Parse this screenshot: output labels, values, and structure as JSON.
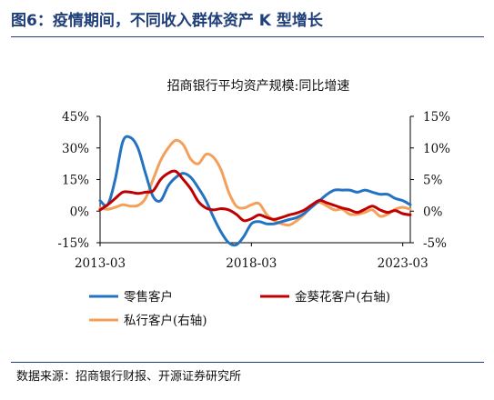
{
  "figure_title": "图6：疫情期间，不同收入群体资产 K 型增长",
  "source": "数据来源：招商银行财报、开源证券研究所",
  "chart_data": {
    "type": "line",
    "title": "招商银行平均资产规模:同比增速",
    "x_ticks": [
      "2013-03",
      "2018-03",
      "2023-03"
    ],
    "x_range": [
      "2013-03",
      "2023-06"
    ],
    "y_left": {
      "ticks": [
        "45%",
        "30%",
        "15%",
        "0%",
        "-15%"
      ],
      "range": [
        -15,
        45
      ]
    },
    "y_right": {
      "ticks": [
        "15%",
        "10%",
        "5%",
        "0%",
        "-5%"
      ],
      "range": [
        -5,
        15
      ]
    },
    "grid": false,
    "legend_position": "bottom",
    "series": [
      {
        "name": "零售客户",
        "axis": "left",
        "color": "#2473c2",
        "points": [
          [
            "2013-03",
            5
          ],
          [
            "2013-06",
            3
          ],
          [
            "2013-09",
            15
          ],
          [
            "2013-12",
            33
          ],
          [
            "2014-03",
            35
          ],
          [
            "2014-06",
            30
          ],
          [
            "2014-09",
            18
          ],
          [
            "2014-12",
            7
          ],
          [
            "2015-03",
            5
          ],
          [
            "2015-06",
            12
          ],
          [
            "2015-09",
            16
          ],
          [
            "2015-12",
            18
          ],
          [
            "2016-03",
            16
          ],
          [
            "2016-06",
            11
          ],
          [
            "2016-09",
            5
          ],
          [
            "2016-12",
            -3
          ],
          [
            "2017-03",
            -10
          ],
          [
            "2017-06",
            -15
          ],
          [
            "2017-09",
            -16
          ],
          [
            "2017-12",
            -12
          ],
          [
            "2018-03",
            -6
          ],
          [
            "2018-06",
            -5
          ],
          [
            "2018-09",
            -6
          ],
          [
            "2018-12",
            -6
          ],
          [
            "2019-03",
            -5
          ],
          [
            "2019-06",
            -4
          ],
          [
            "2019-09",
            -3
          ],
          [
            "2019-12",
            -1
          ],
          [
            "2020-03",
            2
          ],
          [
            "2020-06",
            5
          ],
          [
            "2020-09",
            8
          ],
          [
            "2020-12",
            10
          ],
          [
            "2021-03",
            10
          ],
          [
            "2021-06",
            10
          ],
          [
            "2021-09",
            9
          ],
          [
            "2021-12",
            10
          ],
          [
            "2022-03",
            9
          ],
          [
            "2022-06",
            8
          ],
          [
            "2022-09",
            8
          ],
          [
            "2022-12",
            6
          ],
          [
            "2023-03",
            5
          ],
          [
            "2023-06",
            3
          ]
        ]
      },
      {
        "name": "金葵花客户(右轴)",
        "axis": "right",
        "color": "#c00000",
        "points": [
          [
            "2013-03",
            0.2
          ],
          [
            "2013-06",
            1.0
          ],
          [
            "2013-09",
            2.0
          ],
          [
            "2013-12",
            3.0
          ],
          [
            "2014-03",
            3.0
          ],
          [
            "2014-06",
            2.8
          ],
          [
            "2014-09",
            3.0
          ],
          [
            "2014-12",
            3.2
          ],
          [
            "2015-03",
            5.0
          ],
          [
            "2015-06",
            6.0
          ],
          [
            "2015-09",
            6.3
          ],
          [
            "2015-12",
            5.0
          ],
          [
            "2016-03",
            3.5
          ],
          [
            "2016-06",
            1.5
          ],
          [
            "2016-09",
            0.5
          ],
          [
            "2016-12",
            0.2
          ],
          [
            "2017-03",
            0.4
          ],
          [
            "2017-06",
            0.2
          ],
          [
            "2017-09",
            -0.5
          ],
          [
            "2017-12",
            -1.5
          ],
          [
            "2018-03",
            -1.2
          ],
          [
            "2018-06",
            -0.6
          ],
          [
            "2018-09",
            -1.0
          ],
          [
            "2018-12",
            -1.3
          ],
          [
            "2019-03",
            -1.0
          ],
          [
            "2019-06",
            -0.6
          ],
          [
            "2019-09",
            -0.3
          ],
          [
            "2019-12",
            0.2
          ],
          [
            "2020-03",
            1.0
          ],
          [
            "2020-06",
            1.7
          ],
          [
            "2020-09",
            1.3
          ],
          [
            "2020-12",
            0.9
          ],
          [
            "2021-03",
            0.5
          ],
          [
            "2021-06",
            0.2
          ],
          [
            "2021-09",
            -0.2
          ],
          [
            "2021-12",
            0.3
          ],
          [
            "2022-03",
            0.8
          ],
          [
            "2022-06",
            0.2
          ],
          [
            "2022-09",
            -0.2
          ],
          [
            "2022-12",
            0.1
          ],
          [
            "2023-03",
            -0.4
          ],
          [
            "2023-06",
            -0.6
          ]
        ]
      },
      {
        "name": "私行客户(右轴)",
        "axis": "right",
        "color": "#f4a05a",
        "points": [
          [
            "2013-03",
            0.5
          ],
          [
            "2013-06",
            0.3
          ],
          [
            "2013-09",
            0.6
          ],
          [
            "2013-12",
            1.0
          ],
          [
            "2014-03",
            0.8
          ],
          [
            "2014-06",
            0.9
          ],
          [
            "2014-09",
            2.0
          ],
          [
            "2014-12",
            5.0
          ],
          [
            "2015-03",
            8.0
          ],
          [
            "2015-06",
            10.0
          ],
          [
            "2015-09",
            11.2
          ],
          [
            "2015-12",
            10.5
          ],
          [
            "2016-03",
            8.2
          ],
          [
            "2016-06",
            7.5
          ],
          [
            "2016-09",
            9.0
          ],
          [
            "2016-12",
            8.5
          ],
          [
            "2017-03",
            6.5
          ],
          [
            "2017-06",
            3.0
          ],
          [
            "2017-09",
            0.8
          ],
          [
            "2017-12",
            0.5
          ],
          [
            "2018-03",
            1.0
          ],
          [
            "2018-06",
            1.2
          ],
          [
            "2018-09",
            -0.5
          ],
          [
            "2018-12",
            -1.5
          ],
          [
            "2019-03",
            -2.0
          ],
          [
            "2019-06",
            -2.2
          ],
          [
            "2019-09",
            -1.5
          ],
          [
            "2019-12",
            -0.5
          ],
          [
            "2020-03",
            1.0
          ],
          [
            "2020-06",
            1.4
          ],
          [
            "2020-09",
            0.8
          ],
          [
            "2020-12",
            0.2
          ],
          [
            "2021-03",
            0.3
          ],
          [
            "2021-06",
            -0.5
          ],
          [
            "2021-09",
            -0.5
          ],
          [
            "2021-12",
            -0.2
          ],
          [
            "2022-03",
            0.2
          ],
          [
            "2022-06",
            -0.8
          ],
          [
            "2022-09",
            -0.5
          ],
          [
            "2022-12",
            0.3
          ],
          [
            "2023-03",
            0.6
          ],
          [
            "2023-06",
            0.3
          ]
        ]
      }
    ]
  }
}
